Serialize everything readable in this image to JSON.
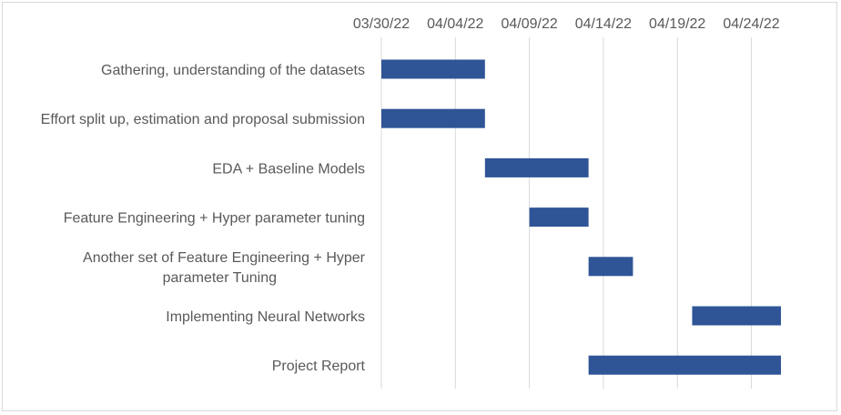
{
  "chart_data": {
    "type": "bar",
    "orientation": "horizontal",
    "subtype": "gantt",
    "title": "",
    "xlabel": "",
    "ylabel": "",
    "x_ticks": [
      "03/30/22",
      "04/04/22",
      "04/09/22",
      "04/14/22",
      "04/19/22",
      "04/24/22"
    ],
    "xlim": [
      "2022-03-30",
      "2022-04-26"
    ],
    "grid": true,
    "legend": "none",
    "bar_color": "#2f5597",
    "tasks": [
      {
        "label": "Gathering, understanding of the datasets",
        "start": "2022-03-30",
        "end": "2022-04-06"
      },
      {
        "label": "Effort split up, estimation and proposal submission",
        "start": "2022-03-30",
        "end": "2022-04-06"
      },
      {
        "label": "EDA + Baseline Models",
        "start": "2022-04-06",
        "end": "2022-04-13"
      },
      {
        "label": "Feature Engineering + Hyper parameter tuning",
        "start": "2022-04-09",
        "end": "2022-04-13"
      },
      {
        "label": [
          "Another set of Feature Engineering + Hyper",
          "parameter Tuning"
        ],
        "start": "2022-04-13",
        "end": "2022-04-16"
      },
      {
        "label": "Implementing Neural Networks",
        "start": "2022-04-20",
        "end": "2022-04-26"
      },
      {
        "label": "Project Report",
        "start": "2022-04-13",
        "end": "2022-04-26"
      }
    ]
  }
}
